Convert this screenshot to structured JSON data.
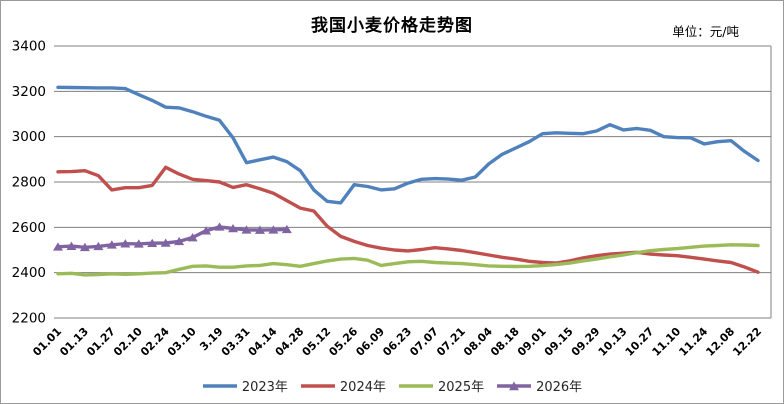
{
  "header": {
    "title": "我国小麦价格走势图",
    "unit": "单位：元/吨"
  },
  "colors": {
    "grid": "#808080",
    "plot_right_border": "#808080",
    "text": "#000000",
    "background": "#ffffff"
  },
  "chart_data": {
    "type": "line",
    "title": "我国小麦价格走势图",
    "unit_label": "单位：元/吨",
    "xlabel": "",
    "ylabel": "",
    "ylim": [
      2200,
      3400
    ],
    "ytick_step": 200,
    "yticks": [
      "3400",
      "3200",
      "3000",
      "2800",
      "2600",
      "2400",
      "2200"
    ],
    "grid": true,
    "legend_position": "bottom",
    "x_labels": [
      "01.01",
      "01.13",
      "01.27",
      "02.10",
      "02.24",
      "03.10",
      "3.19",
      "03.31",
      "04.14",
      "04.28",
      "05.12",
      "05.26",
      "06.09",
      "06.23",
      "07.07",
      "07.21",
      "08.04",
      "08.18",
      "09.01",
      "09.15",
      "09.29",
      "10.13",
      "10.27",
      "11.10",
      "11.24",
      "12.08",
      "12.22"
    ],
    "x_label_every_nth_point": 2,
    "series": [
      {
        "name": "2023年",
        "color": "#4F81BD",
        "marker": "none",
        "values": [
          3218,
          3217,
          3216,
          3215,
          3215,
          3212,
          3185,
          3160,
          3130,
          3127,
          3110,
          3090,
          3072,
          2995,
          2885,
          2898,
          2910,
          2890,
          2850,
          2765,
          2715,
          2708,
          2788,
          2780,
          2765,
          2770,
          2795,
          2812,
          2815,
          2813,
          2808,
          2822,
          2880,
          2922,
          2950,
          2978,
          3013,
          3017,
          3015,
          3013,
          3025,
          3053,
          3030,
          3036,
          3028,
          3000,
          2996,
          2995,
          2968,
          2978,
          2982,
          2935,
          2895
        ]
      },
      {
        "name": "2024年",
        "color": "#C0504D",
        "marker": "none",
        "values": [
          2845,
          2846,
          2850,
          2828,
          2765,
          2775,
          2775,
          2785,
          2865,
          2835,
          2812,
          2806,
          2800,
          2776,
          2788,
          2770,
          2750,
          2718,
          2685,
          2672,
          2605,
          2560,
          2538,
          2520,
          2508,
          2500,
          2496,
          2502,
          2510,
          2505,
          2498,
          2488,
          2478,
          2468,
          2460,
          2450,
          2445,
          2442,
          2452,
          2465,
          2475,
          2482,
          2486,
          2490,
          2482,
          2478,
          2475,
          2468,
          2460,
          2452,
          2445,
          2425,
          2402
        ]
      },
      {
        "name": "2025年",
        "color": "#9BBB59",
        "marker": "none",
        "values": [
          2395,
          2397,
          2390,
          2392,
          2395,
          2393,
          2395,
          2398,
          2400,
          2415,
          2428,
          2430,
          2424,
          2424,
          2430,
          2432,
          2440,
          2435,
          2428,
          2440,
          2452,
          2460,
          2463,
          2455,
          2432,
          2440,
          2448,
          2450,
          2445,
          2442,
          2440,
          2435,
          2430,
          2428,
          2427,
          2428,
          2431,
          2436,
          2442,
          2452,
          2460,
          2470,
          2478,
          2488,
          2497,
          2502,
          2506,
          2512,
          2517,
          2520,
          2523,
          2522,
          2520
        ]
      },
      {
        "name": "2026年",
        "color": "#8064A2",
        "marker": "triangle",
        "values": [
          2514,
          2517,
          2512,
          2516,
          2523,
          2528,
          2527,
          2530,
          2531,
          2538,
          2555,
          2585,
          2602,
          2595,
          2589,
          2588,
          2589,
          2591
        ]
      }
    ]
  }
}
